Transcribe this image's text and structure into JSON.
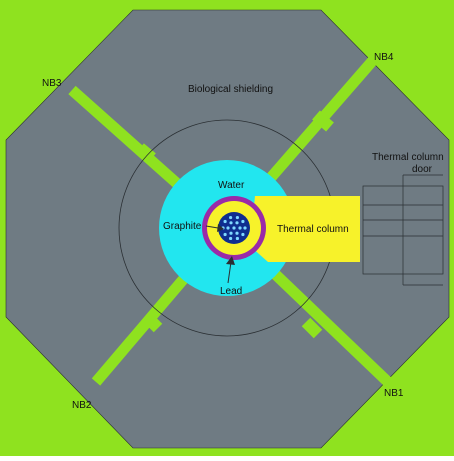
{
  "colors": {
    "background": "#8fe21f",
    "shielding": "#6f7b83",
    "water": "#22e6ef",
    "graphite": "#f7f22a",
    "thermal_column": "#f7f22a",
    "lead": "#9a2aa8",
    "core": "#0f2e8f",
    "beam_tube": "#8fe21f",
    "lines": "#2a2f33"
  },
  "labels": {
    "biological_shielding": "Biological shielding",
    "water": "Water",
    "graphite": "Graphite",
    "thermal_column": "Thermal column",
    "lead": "Lead",
    "thermal_column_door_line1": "Thermal column",
    "thermal_column_door_line2": "door",
    "nb1": "NB1",
    "nb2": "NB2",
    "nb3": "NB3",
    "nb4": "NB4"
  },
  "icons": {
    "graphite_arrow": "arrow-right-icon",
    "lead_arrow": "arrow-up-icon"
  }
}
